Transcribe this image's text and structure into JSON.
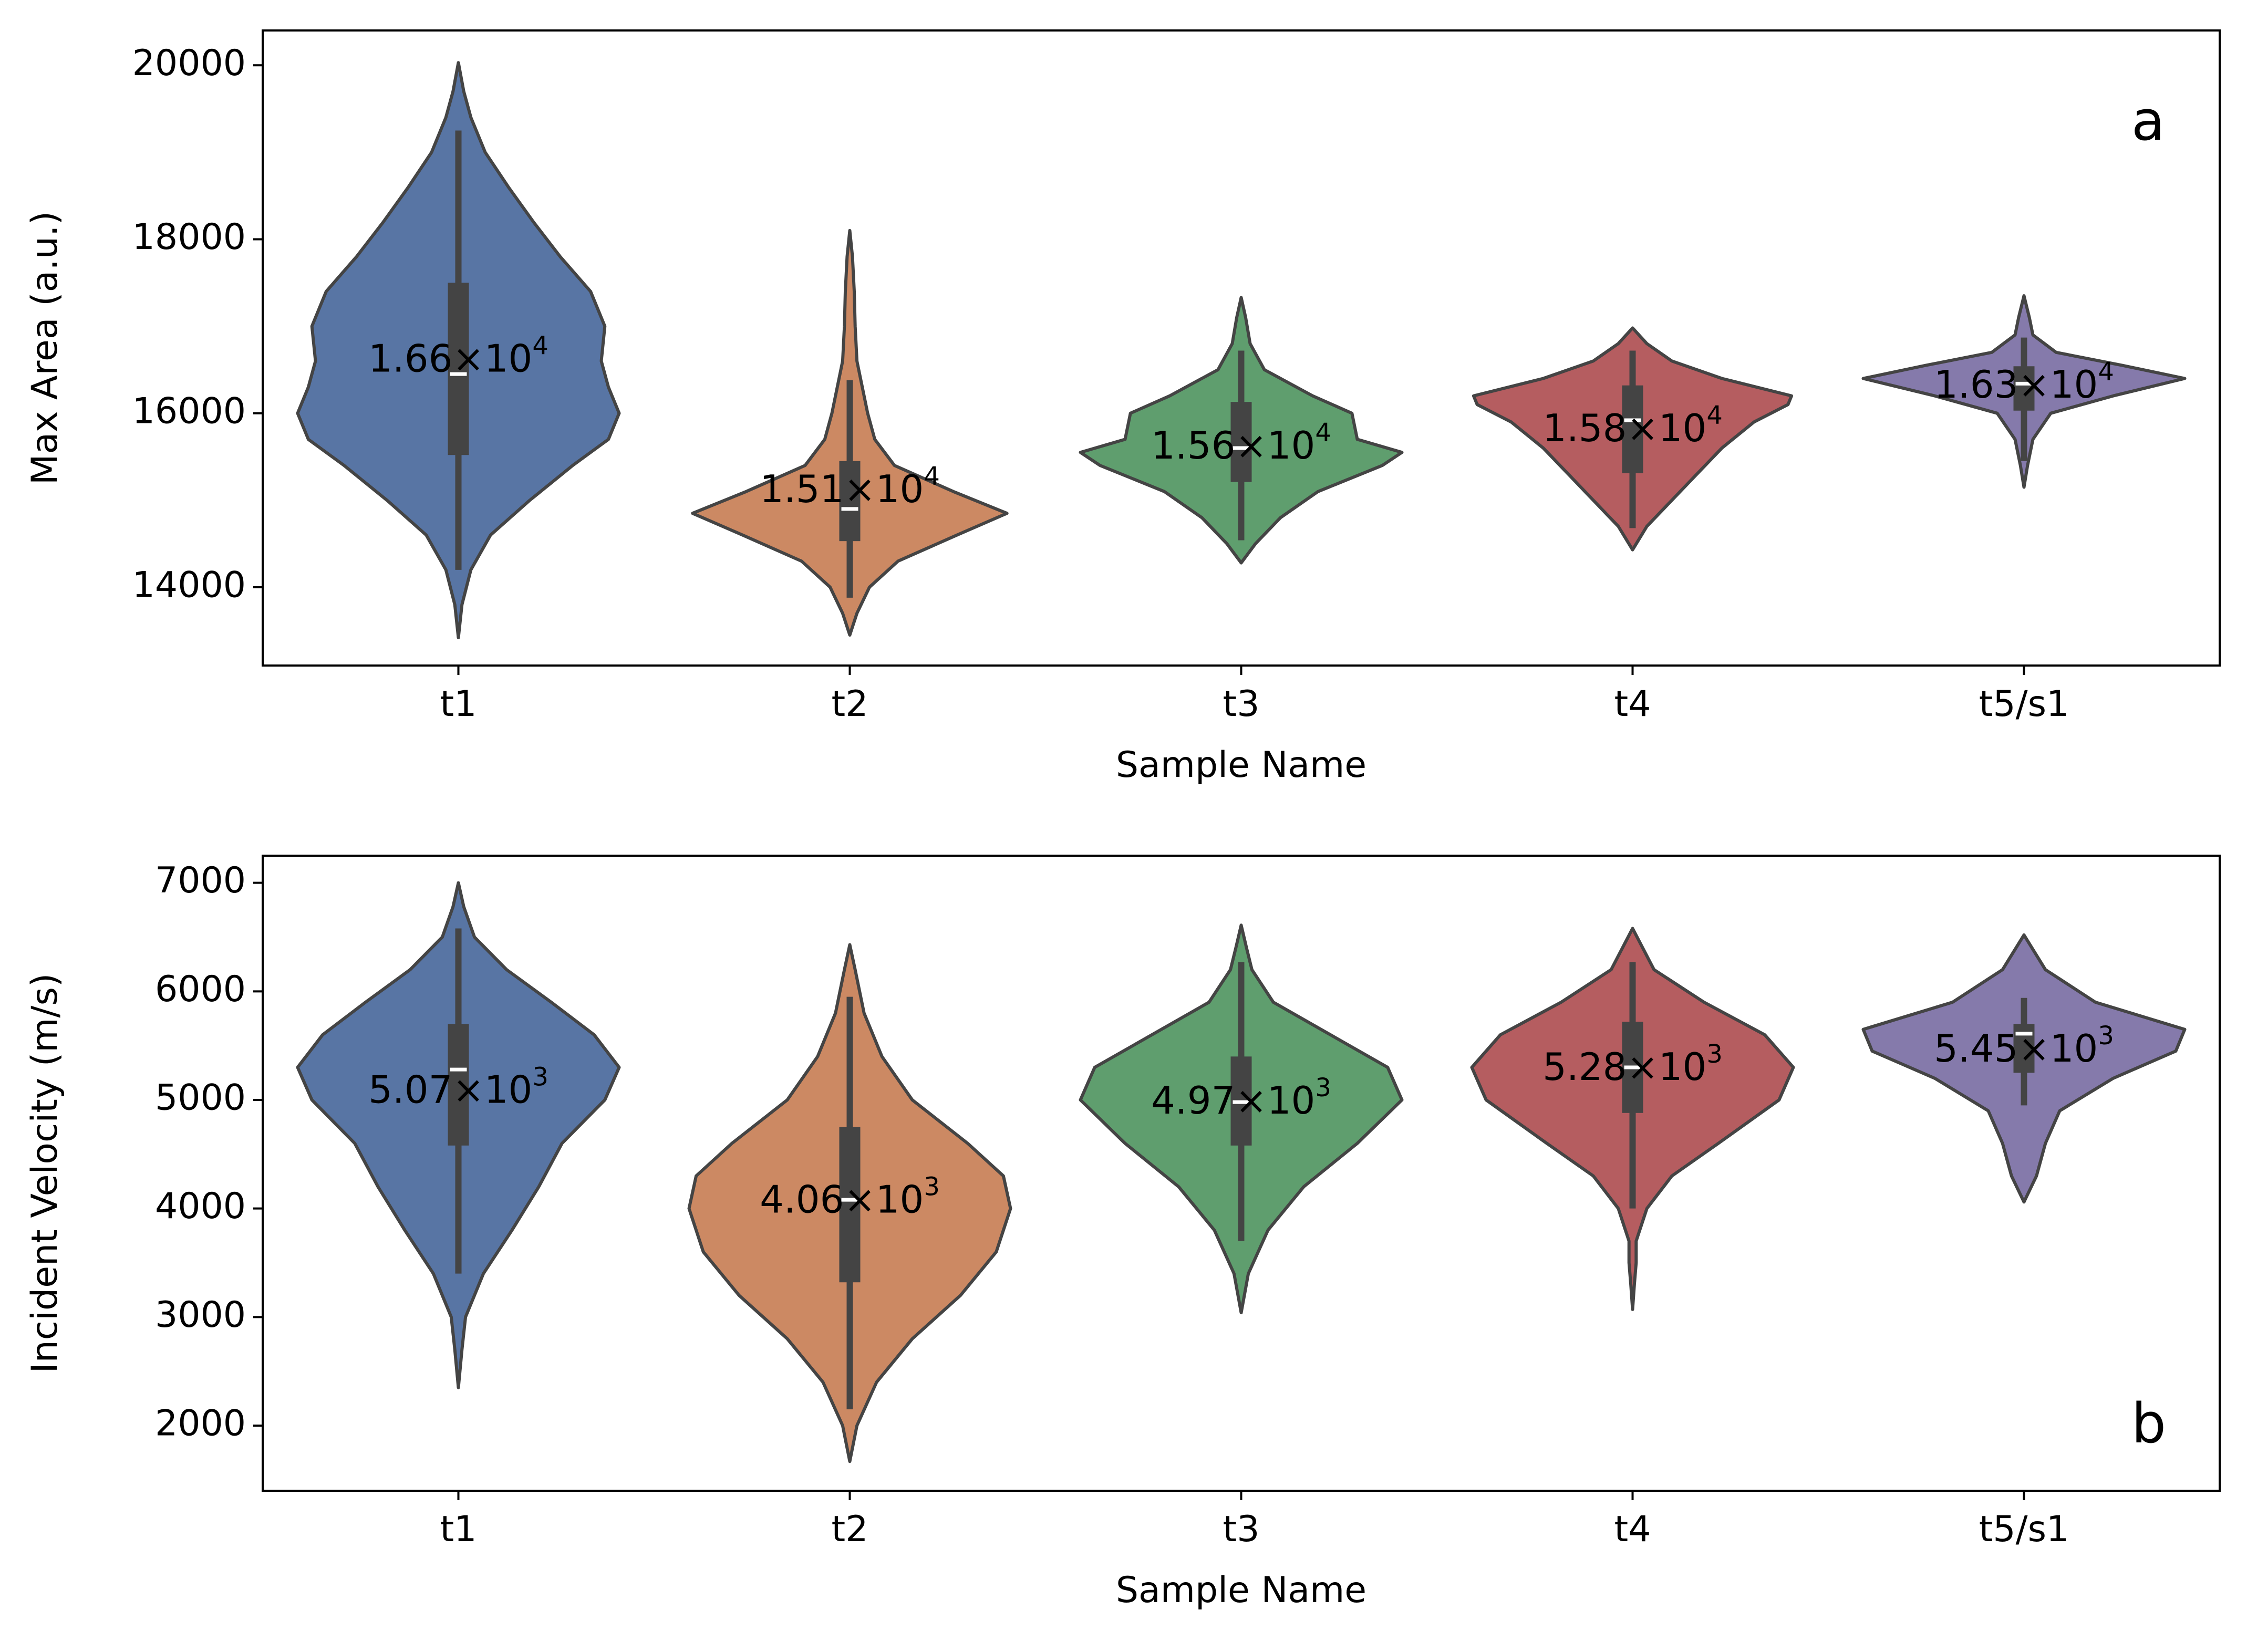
{
  "colors": {
    "t1": "#5875a4",
    "t2": "#cc8963",
    "t3": "#5f9e6e",
    "t4": "#b55d60",
    "t5/s1": "#857aab",
    "outline": "#444444",
    "box": "#444444",
    "median": "#ffffff"
  },
  "chart_data": [
    {
      "type": "violin",
      "panel_label": "a",
      "xlabel": "Sample Name",
      "ylabel": "Max Area (a.u.)",
      "ylim": [
        13100,
        20400
      ],
      "yticks": [
        14000,
        16000,
        18000,
        20000
      ],
      "categories": [
        "t1",
        "t2",
        "t3",
        "t4",
        "t5/s1"
      ],
      "grid": false,
      "violins": [
        {
          "name": "t1",
          "whisker": [
            14200,
            19250
          ],
          "q1": 15520,
          "median": 16450,
          "q3": 17500,
          "mean": 16600,
          "mean_label": "1.66",
          "mean_exp": "4",
          "profile": [
            [
              13420,
              0
            ],
            [
              13800,
              0.02
            ],
            [
              14200,
              0.07
            ],
            [
              14600,
              0.18
            ],
            [
              15000,
              0.4
            ],
            [
              15400,
              0.64
            ],
            [
              15700,
              0.84
            ],
            [
              16000,
              0.9
            ],
            [
              16300,
              0.84
            ],
            [
              16600,
              0.8
            ],
            [
              17000,
              0.82
            ],
            [
              17400,
              0.74
            ],
            [
              17800,
              0.57
            ],
            [
              18200,
              0.42
            ],
            [
              18600,
              0.28
            ],
            [
              19000,
              0.15
            ],
            [
              19400,
              0.07
            ],
            [
              19700,
              0.03
            ],
            [
              20030,
              0
            ]
          ]
        },
        {
          "name": "t2",
          "whisker": [
            13880,
            16380
          ],
          "q1": 14530,
          "median": 14900,
          "q3": 15450,
          "mean": 15100,
          "mean_label": "1.51",
          "mean_exp": "4",
          "profile": [
            [
              13450,
              0
            ],
            [
              13700,
              0.04
            ],
            [
              14000,
              0.11
            ],
            [
              14300,
              0.27
            ],
            [
              14600,
              0.6
            ],
            [
              14850,
              0.88
            ],
            [
              15100,
              0.58
            ],
            [
              15400,
              0.25
            ],
            [
              15700,
              0.14
            ],
            [
              16000,
              0.1
            ],
            [
              16300,
              0.07
            ],
            [
              16600,
              0.04
            ],
            [
              17000,
              0.03
            ],
            [
              17400,
              0.025
            ],
            [
              17800,
              0.015
            ],
            [
              18100,
              0
            ]
          ]
        },
        {
          "name": "t3",
          "whisker": [
            14540,
            16720
          ],
          "q1": 15210,
          "median": 15600,
          "q3": 16130,
          "mean": 15600,
          "mean_label": "1.56",
          "mean_exp": "4",
          "profile": [
            [
              14280,
              0
            ],
            [
              14500,
              0.08
            ],
            [
              14800,
              0.22
            ],
            [
              15100,
              0.43
            ],
            [
              15400,
              0.79
            ],
            [
              15550,
              0.9
            ],
            [
              15700,
              0.65
            ],
            [
              16000,
              0.62
            ],
            [
              16200,
              0.4
            ],
            [
              16500,
              0.13
            ],
            [
              16800,
              0.05
            ],
            [
              17100,
              0.025
            ],
            [
              17330,
              0
            ]
          ]
        },
        {
          "name": "t4",
          "whisker": [
            14680,
            16720
          ],
          "q1": 15310,
          "median": 15920,
          "q3": 16320,
          "mean": 15800,
          "mean_label": "1.58",
          "mean_exp": "4",
          "profile": [
            [
              14430,
              0
            ],
            [
              14700,
              0.08
            ],
            [
              15000,
              0.22
            ],
            [
              15300,
              0.36
            ],
            [
              15600,
              0.5
            ],
            [
              15900,
              0.68
            ],
            [
              16100,
              0.87
            ],
            [
              16200,
              0.89
            ],
            [
              16400,
              0.5
            ],
            [
              16600,
              0.22
            ],
            [
              16800,
              0.08
            ],
            [
              16980,
              0
            ]
          ]
        },
        {
          "name": "t5/s1",
          "whisker": [
            15450,
            16870
          ],
          "q1": 16030,
          "median": 16340,
          "q3": 16540,
          "mean": 16300,
          "mean_label": "1.63",
          "mean_exp": "4",
          "profile": [
            [
              15150,
              0
            ],
            [
              15400,
              0.02
            ],
            [
              15700,
              0.05
            ],
            [
              16000,
              0.15
            ],
            [
              16200,
              0.5
            ],
            [
              16400,
              0.9
            ],
            [
              16550,
              0.55
            ],
            [
              16700,
              0.18
            ],
            [
              16900,
              0.05
            ],
            [
              17100,
              0.03
            ],
            [
              17350,
              0
            ]
          ]
        }
      ]
    },
    {
      "type": "violin",
      "panel_label": "b",
      "xlabel": "Sample Name",
      "ylabel": "Incident Velocity (m/s)",
      "ylim": [
        1400,
        7250
      ],
      "yticks": [
        2000,
        3000,
        4000,
        5000,
        6000,
        7000
      ],
      "categories": [
        "t1",
        "t2",
        "t3",
        "t4",
        "t5/s1"
      ],
      "grid": false,
      "violins": [
        {
          "name": "t1",
          "whisker": [
            3400,
            6580
          ],
          "q1": 4580,
          "median": 5280,
          "q3": 5700,
          "mean": 5070,
          "mean_label": "5.07",
          "mean_exp": "3",
          "profile": [
            [
              2350,
              0
            ],
            [
              2700,
              0.02
            ],
            [
              3000,
              0.04
            ],
            [
              3400,
              0.14
            ],
            [
              3800,
              0.3
            ],
            [
              4200,
              0.45
            ],
            [
              4600,
              0.58
            ],
            [
              5000,
              0.82
            ],
            [
              5300,
              0.9
            ],
            [
              5600,
              0.76
            ],
            [
              5900,
              0.52
            ],
            [
              6200,
              0.27
            ],
            [
              6500,
              0.09
            ],
            [
              6780,
              0.03
            ],
            [
              7000,
              0
            ]
          ]
        },
        {
          "name": "t2",
          "whisker": [
            2150,
            5950
          ],
          "q1": 3320,
          "median": 4080,
          "q3": 4750,
          "mean": 4060,
          "mean_label": "4.06",
          "mean_exp": "3",
          "profile": [
            [
              1670,
              0
            ],
            [
              2000,
              0.04
            ],
            [
              2400,
              0.15
            ],
            [
              2800,
              0.35
            ],
            [
              3200,
              0.62
            ],
            [
              3600,
              0.82
            ],
            [
              4000,
              0.9
            ],
            [
              4300,
              0.86
            ],
            [
              4600,
              0.66
            ],
            [
              5000,
              0.35
            ],
            [
              5400,
              0.18
            ],
            [
              5800,
              0.08
            ],
            [
              6200,
              0.03
            ],
            [
              6430,
              0
            ]
          ]
        },
        {
          "name": "t3",
          "whisker": [
            3700,
            6270
          ],
          "q1": 4580,
          "median": 4980,
          "q3": 5400,
          "mean": 4970,
          "mean_label": "4.97",
          "mean_exp": "3",
          "profile": [
            [
              3040,
              0
            ],
            [
              3400,
              0.04
            ],
            [
              3800,
              0.15
            ],
            [
              4200,
              0.35
            ],
            [
              4600,
              0.65
            ],
            [
              5000,
              0.9
            ],
            [
              5300,
              0.82
            ],
            [
              5600,
              0.5
            ],
            [
              5900,
              0.18
            ],
            [
              6200,
              0.06
            ],
            [
              6400,
              0.03
            ],
            [
              6610,
              0
            ]
          ]
        },
        {
          "name": "t4",
          "whisker": [
            4000,
            6270
          ],
          "q1": 4880,
          "median": 5300,
          "q3": 5720,
          "mean": 5280,
          "mean_label": "5.28",
          "mean_exp": "3",
          "profile": [
            [
              3070,
              0
            ],
            [
              3300,
              0.01
            ],
            [
              3500,
              0.02
            ],
            [
              3700,
              0.02
            ],
            [
              4000,
              0.08
            ],
            [
              4300,
              0.22
            ],
            [
              4600,
              0.48
            ],
            [
              5000,
              0.82
            ],
            [
              5300,
              0.9
            ],
            [
              5600,
              0.74
            ],
            [
              5900,
              0.4
            ],
            [
              6200,
              0.12
            ],
            [
              6580,
              0
            ]
          ]
        },
        {
          "name": "t5/s1",
          "whisker": [
            4950,
            5940
          ],
          "q1": 5250,
          "median": 5610,
          "q3": 5700,
          "mean": 5450,
          "mean_label": "5.45",
          "mean_exp": "3",
          "profile": [
            [
              4060,
              0
            ],
            [
              4300,
              0.07
            ],
            [
              4600,
              0.12
            ],
            [
              4900,
              0.2
            ],
            [
              5200,
              0.5
            ],
            [
              5450,
              0.85
            ],
            [
              5650,
              0.9
            ],
            [
              5900,
              0.4
            ],
            [
              6200,
              0.12
            ],
            [
              6520,
              0
            ]
          ]
        }
      ]
    }
  ]
}
